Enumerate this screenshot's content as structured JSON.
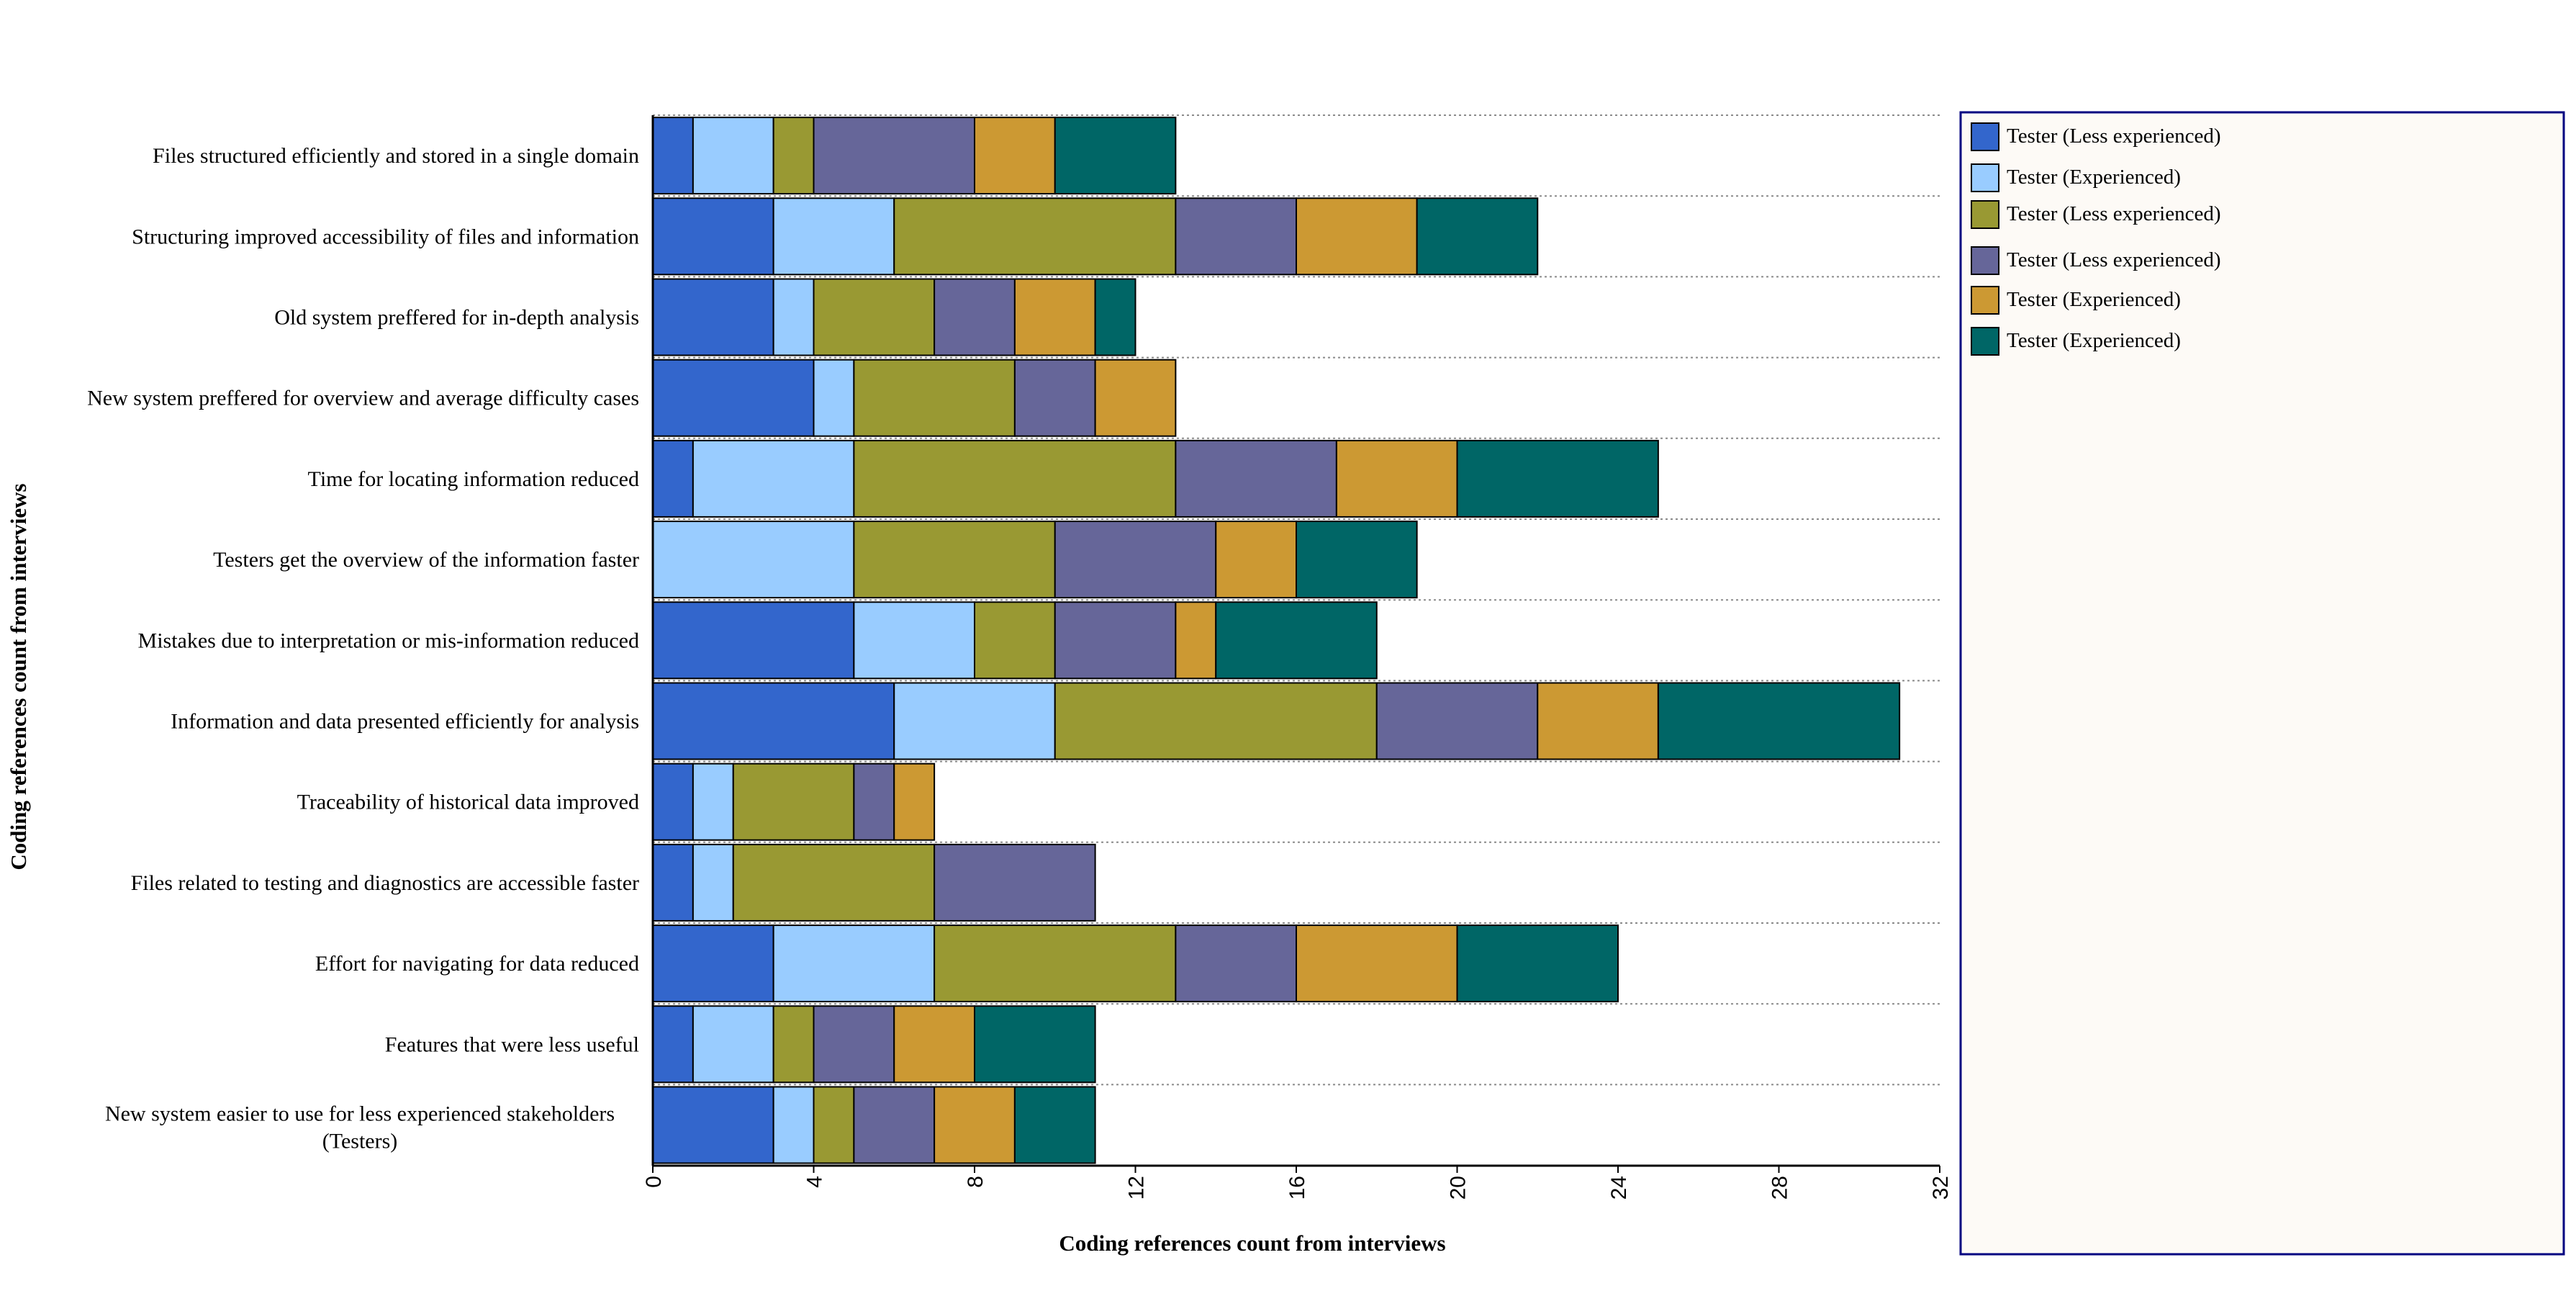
{
  "chart_data": {
    "type": "bar",
    "orientation": "horizontal",
    "stacked": true,
    "title": "",
    "xlabel": "Coding references count from interviews",
    "ylabel": "Coding references count from interviews",
    "xlim": [
      0,
      32
    ],
    "xticks": [
      "0",
      "4",
      "8",
      "12",
      "16",
      "20",
      "24",
      "28",
      "32"
    ],
    "legend_position": "right",
    "categories": [
      [
        "Files structured efficiently and stored in a single domain"
      ],
      [
        "Structuring improved accessibility of files and information"
      ],
      [
        "Old system preffered for in-depth analysis"
      ],
      [
        "New system preffered for overview and average difficulty cases"
      ],
      [
        "Time for locating information reduced"
      ],
      [
        "Testers get the overview of the information faster"
      ],
      [
        "Mistakes due to interpretation or mis-information reduced"
      ],
      [
        "Information and data presented efficiently for analysis"
      ],
      [
        "Traceability of historical data improved"
      ],
      [
        "Files related to testing and diagnostics are accessible faster"
      ],
      [
        "Effort for navigating for data reduced"
      ],
      [
        "Features that were less useful"
      ],
      [
        "New system easier to use for less experienced stakeholders",
        "(Testers)"
      ]
    ],
    "series": [
      {
        "name": "Tester (Less experienced)",
        "color": "#3366cc",
        "values": [
          1,
          3,
          3,
          4,
          1,
          0,
          5,
          6,
          1,
          1,
          3,
          1,
          3
        ]
      },
      {
        "name": "Tester (Experienced)",
        "color": "#99ccff",
        "values": [
          2,
          3,
          1,
          1,
          4,
          5,
          3,
          4,
          1,
          1,
          4,
          2,
          1
        ]
      },
      {
        "name": "Tester (Less experienced)",
        "color": "#999933",
        "values": [
          1,
          7,
          3,
          4,
          8,
          5,
          2,
          8,
          3,
          5,
          6,
          1,
          1
        ]
      },
      {
        "name": "Tester (Less experienced)",
        "color": "#666699",
        "values": [
          4,
          3,
          2,
          2,
          4,
          4,
          3,
          4,
          1,
          4,
          3,
          2,
          2
        ]
      },
      {
        "name": "Tester (Experienced)",
        "color": "#cc9933",
        "values": [
          2,
          3,
          2,
          2,
          3,
          2,
          1,
          3,
          1,
          0,
          4,
          2,
          2
        ]
      },
      {
        "name": "Tester (Experienced)",
        "color": "#006666",
        "values": [
          3,
          3,
          1,
          0,
          5,
          3,
          4,
          6,
          0,
          0,
          4,
          3,
          2
        ]
      }
    ]
  }
}
